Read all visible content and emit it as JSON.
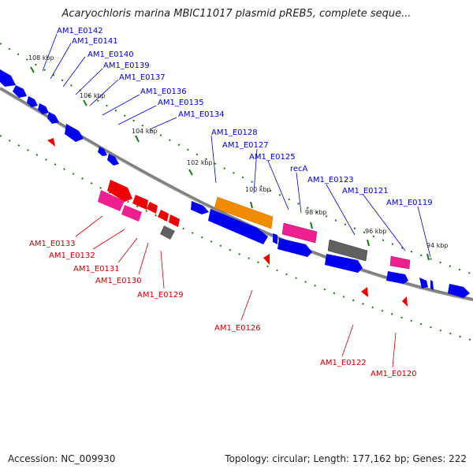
{
  "title": "Acaryochloris marina MBIC11017 plasmid pREB5, complete seque...",
  "footer": {
    "accession": "Accession: NC_009930",
    "topology": "Topology: circular; Length: 177,162 bp; Genes: 222"
  },
  "colors": {
    "forward_label": "#0000cc",
    "reverse_label": "#cc0000",
    "backbone": "#808080",
    "tick": "#1a7a1a",
    "cds_forward": "#0000ee",
    "cds_reverse": "#ee0000",
    "rrna_tRNA_pink": "#ee1f8f",
    "misc_orange": "#f08c00",
    "pseudo_grey": "#606060"
  },
  "kbp_ticks": [
    "108 kbp",
    "106 kbp",
    "104 kbp",
    "102 kbp",
    "100 kbp",
    "98 kbp",
    "96 kbp",
    "94 kbp"
  ],
  "forward_genes": [
    "AM1_E0142",
    "AM1_E0141",
    "AM1_E0140",
    "AM1_E0139",
    "AM1_E0137",
    "AM1_E0136",
    "AM1_E0135",
    "AM1_E0134",
    "AM1_E0128",
    "AM1_E0127",
    "AM1_E0125",
    "recA",
    "AM1_E0123",
    "AM1_E0121",
    "AM1_E0119"
  ],
  "reverse_genes": [
    "AM1_E0133",
    "AM1_E0132",
    "AM1_E0131",
    "AM1_E0130",
    "AM1_E0129",
    "AM1_E0126",
    "AM1_E0122",
    "AM1_E0120"
  ]
}
